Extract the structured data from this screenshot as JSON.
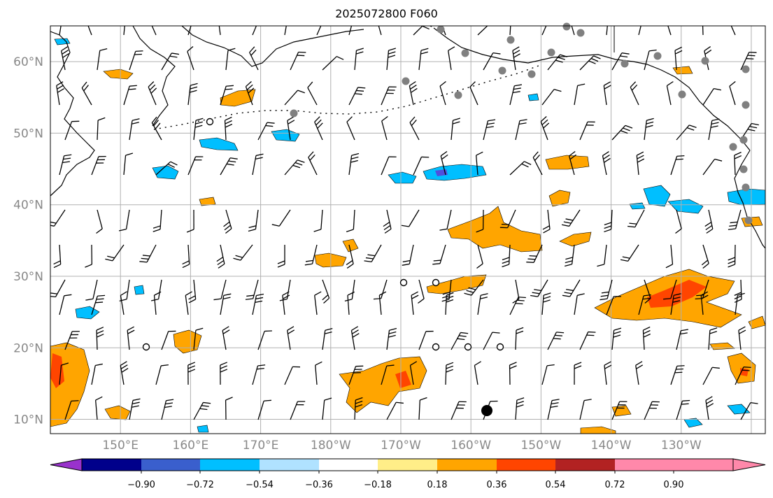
{
  "title": "2025072800 F060",
  "map": {
    "lat_labels": [
      "60°N",
      "50°N",
      "40°N",
      "30°N",
      "20°N",
      "10°N"
    ],
    "lon_labels": [
      "150°E",
      "160°E",
      "170°E",
      "180°W",
      "170°W",
      "160°W",
      "150°W",
      "140°W",
      "130°W"
    ],
    "lat_range": [
      8,
      65
    ],
    "lon_range": [
      140,
      242
    ],
    "colors": {
      "grid": "#b0b0b0",
      "coast": "#000000",
      "station": "#808080",
      "pos_weak": "#ffee88",
      "pos_mid": "#ffa500",
      "pos_strong": "#ff4500",
      "neg_weak": "#00bfff",
      "neg_strong": "#5050dd"
    }
  },
  "colorbar": {
    "tick_labels": [
      "−0.90",
      "−0.72",
      "−0.54",
      "−0.36",
      "−0.18",
      "0.18",
      "0.36",
      "0.54",
      "0.72",
      "0.90"
    ],
    "segment_colors": [
      "#9932cc",
      "#00008b",
      "#3a5fcd",
      "#00bfff",
      "#b0e2ff",
      "#ffffff",
      "#ffee88",
      "#ffa500",
      "#ff4500",
      "#b22222",
      "#ff88aa",
      "#ff88aa"
    ]
  }
}
